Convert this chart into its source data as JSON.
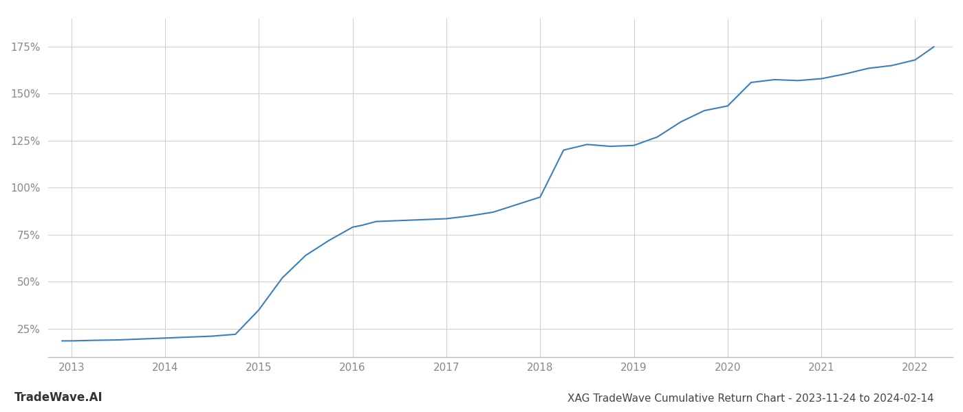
{
  "title": "XAG TradeWave Cumulative Return Chart - 2023-11-24 to 2024-02-14",
  "watermark": "TradeWave.AI",
  "line_color": "#3a7ebf",
  "background_color": "#ffffff",
  "grid_color": "#cccccc",
  "x_years": [
    2013,
    2014,
    2015,
    2016,
    2017,
    2018,
    2019,
    2020,
    2021,
    2022
  ],
  "x_data": [
    2012.9,
    2013.0,
    2013.25,
    2013.5,
    2013.75,
    2014.0,
    2014.1,
    2014.25,
    2014.5,
    2014.75,
    2015.0,
    2015.25,
    2015.5,
    2015.75,
    2016.0,
    2016.1,
    2016.25,
    2016.5,
    2016.75,
    2017.0,
    2017.25,
    2017.5,
    2017.75,
    2018.0,
    2018.25,
    2018.5,
    2018.75,
    2019.0,
    2019.25,
    2019.5,
    2019.75,
    2020.0,
    2020.25,
    2020.5,
    2020.75,
    2021.0,
    2021.25,
    2021.5,
    2021.75,
    2022.0,
    2022.2
  ],
  "y_data": [
    18.5,
    18.5,
    18.8,
    19.0,
    19.5,
    20.0,
    20.2,
    20.5,
    21.0,
    22.0,
    35.0,
    52.0,
    64.0,
    72.0,
    79.0,
    80.0,
    82.0,
    82.5,
    83.0,
    83.5,
    85.0,
    87.0,
    91.0,
    95.0,
    120.0,
    123.0,
    122.0,
    122.5,
    127.0,
    135.0,
    141.0,
    143.5,
    156.0,
    157.5,
    157.0,
    158.0,
    160.5,
    163.5,
    165.0,
    168.0,
    175.0
  ],
  "yticks": [
    25,
    50,
    75,
    100,
    125,
    150,
    175
  ],
  "ylim": [
    10,
    190
  ],
  "xlim": [
    2012.75,
    2022.4
  ],
  "line_width": 1.5,
  "title_fontsize": 11,
  "tick_fontsize": 11,
  "watermark_fontsize": 12,
  "tick_color": "#888888",
  "axis_color": "#bbbbbb"
}
